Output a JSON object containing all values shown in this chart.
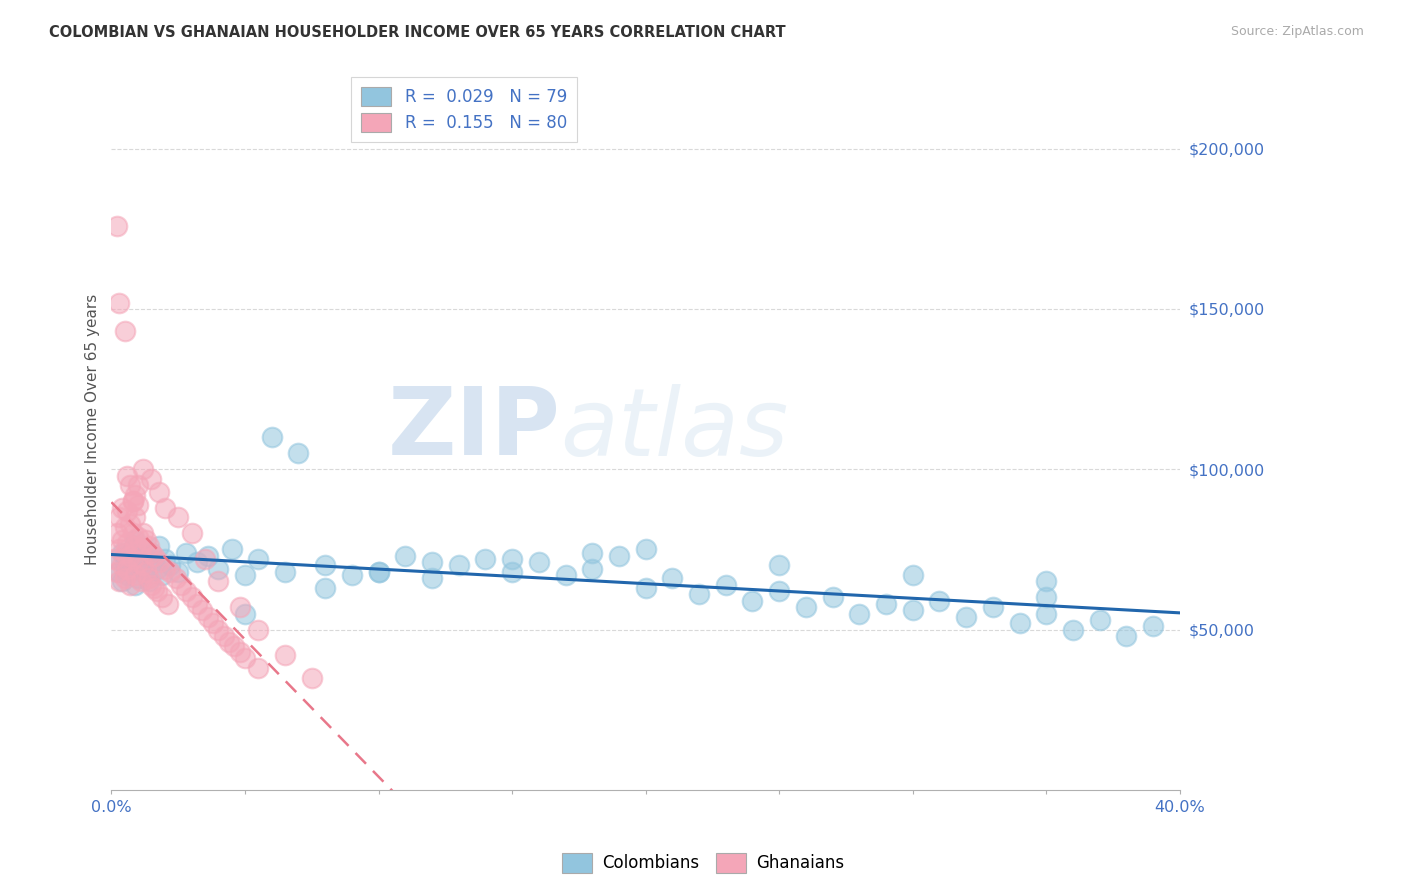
{
  "title": "COLOMBIAN VS GHANAIAN HOUSEHOLDER INCOME OVER 65 YEARS CORRELATION CHART",
  "source": "Source: ZipAtlas.com",
  "ylabel": "Householder Income Over 65 years",
  "watermark_zip": "ZIP",
  "watermark_atlas": "atlas",
  "legend_colombians": "Colombians",
  "legend_ghanaians": "Ghanaians",
  "R_colombians": 0.029,
  "N_colombians": 79,
  "R_ghanaians": 0.155,
  "N_ghanaians": 80,
  "color_colombians": "#92c5de",
  "color_ghanaians": "#f4a6b8",
  "color_trend_colombians": "#2166ac",
  "color_trend_ghanaians": "#e8778a",
  "xlim": [
    0.0,
    0.4
  ],
  "ylim": [
    0,
    225000
  ],
  "yticks": [
    50000,
    100000,
    150000,
    200000
  ],
  "background_color": "#ffffff",
  "colombians_x": [
    0.002,
    0.003,
    0.004,
    0.004,
    0.005,
    0.005,
    0.006,
    0.006,
    0.007,
    0.008,
    0.009,
    0.009,
    0.01,
    0.01,
    0.011,
    0.012,
    0.013,
    0.014,
    0.015,
    0.016,
    0.017,
    0.018,
    0.019,
    0.02,
    0.022,
    0.025,
    0.028,
    0.032,
    0.036,
    0.04,
    0.045,
    0.05,
    0.055,
    0.06,
    0.065,
    0.07,
    0.08,
    0.09,
    0.1,
    0.11,
    0.12,
    0.13,
    0.14,
    0.15,
    0.16,
    0.17,
    0.18,
    0.19,
    0.2,
    0.21,
    0.22,
    0.23,
    0.24,
    0.25,
    0.26,
    0.27,
    0.28,
    0.29,
    0.3,
    0.31,
    0.32,
    0.33,
    0.34,
    0.35,
    0.36,
    0.37,
    0.38,
    0.39,
    0.25,
    0.3,
    0.35,
    0.2,
    0.15,
    0.1,
    0.05,
    0.08,
    0.12,
    0.18,
    0.35
  ],
  "colombians_y": [
    72000,
    68000,
    74000,
    65000,
    70000,
    73000,
    67000,
    71000,
    69000,
    75000,
    64000,
    78000,
    66000,
    72000,
    70000,
    68000,
    73000,
    65000,
    74000,
    71000,
    69000,
    76000,
    67000,
    72000,
    70000,
    68000,
    74000,
    71000,
    73000,
    69000,
    75000,
    67000,
    72000,
    110000,
    68000,
    105000,
    70000,
    67000,
    68000,
    73000,
    66000,
    70000,
    72000,
    68000,
    71000,
    67000,
    69000,
    73000,
    63000,
    66000,
    61000,
    64000,
    59000,
    62000,
    57000,
    60000,
    55000,
    58000,
    56000,
    59000,
    54000,
    57000,
    52000,
    55000,
    50000,
    53000,
    48000,
    51000,
    70000,
    67000,
    65000,
    75000,
    72000,
    68000,
    55000,
    63000,
    71000,
    74000,
    60000
  ],
  "ghanaians_x": [
    0.001,
    0.002,
    0.002,
    0.003,
    0.003,
    0.003,
    0.004,
    0.004,
    0.004,
    0.005,
    0.005,
    0.005,
    0.006,
    0.006,
    0.006,
    0.007,
    0.007,
    0.007,
    0.008,
    0.008,
    0.008,
    0.009,
    0.009,
    0.009,
    0.01,
    0.01,
    0.01,
    0.011,
    0.011,
    0.012,
    0.012,
    0.013,
    0.013,
    0.014,
    0.014,
    0.015,
    0.015,
    0.016,
    0.016,
    0.017,
    0.018,
    0.019,
    0.02,
    0.021,
    0.022,
    0.024,
    0.026,
    0.028,
    0.03,
    0.032,
    0.034,
    0.036,
    0.038,
    0.04,
    0.042,
    0.044,
    0.046,
    0.048,
    0.05,
    0.055,
    0.002,
    0.003,
    0.005,
    0.006,
    0.007,
    0.008,
    0.009,
    0.01,
    0.012,
    0.015,
    0.018,
    0.02,
    0.025,
    0.03,
    0.035,
    0.04,
    0.048,
    0.055,
    0.065,
    0.075
  ],
  "ghanaians_y": [
    72000,
    68000,
    80000,
    65000,
    75000,
    85000,
    70000,
    78000,
    88000,
    66000,
    74000,
    82000,
    69000,
    77000,
    87000,
    64000,
    73000,
    83000,
    72000,
    80000,
    90000,
    67000,
    76000,
    85000,
    71000,
    79000,
    89000,
    65000,
    75000,
    70000,
    80000,
    68000,
    78000,
    66000,
    76000,
    64000,
    74000,
    63000,
    73000,
    62000,
    71000,
    60000,
    69000,
    58000,
    68000,
    66000,
    64000,
    62000,
    60000,
    58000,
    56000,
    54000,
    52000,
    50000,
    48000,
    46000,
    45000,
    43000,
    41000,
    38000,
    176000,
    152000,
    143000,
    98000,
    95000,
    90000,
    92000,
    95000,
    100000,
    97000,
    93000,
    88000,
    85000,
    80000,
    72000,
    65000,
    57000,
    50000,
    42000,
    35000
  ]
}
